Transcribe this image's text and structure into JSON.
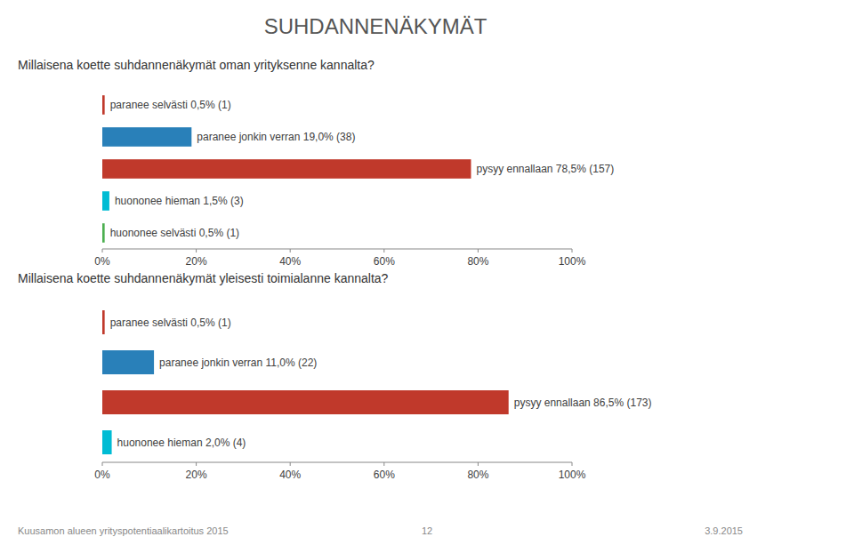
{
  "chart_data": [
    {
      "type": "bar",
      "orientation": "horizontal",
      "title": "SUHDANNENÄKYMÄT",
      "subtitle": "Millaisena koette suhdannenäkymät oman yrityksenne kannalta?",
      "categories": [
        "paranee selvästi 0,5% (1)",
        "paranee jonkin verran 19,0% (38)",
        "pysyy ennallaan 78,5% (157)",
        "huononee hieman 1,5% (3)",
        "huononee selvästi 0,5% (1)"
      ],
      "values": [
        0.5,
        19.0,
        78.5,
        1.5,
        0.5
      ],
      "colors": [
        "#c0392b",
        "#2980b9",
        "#c0392b",
        "#00bcd4",
        "#4caf50"
      ],
      "xlim": [
        0,
        100
      ],
      "xticks": [
        {
          "value": 0,
          "label": "0%"
        },
        {
          "value": 20,
          "label": "20%"
        },
        {
          "value": 40,
          "label": "40%"
        },
        {
          "value": 60,
          "label": "60%"
        },
        {
          "value": 80,
          "label": "80%"
        },
        {
          "value": 100,
          "label": "100%"
        }
      ],
      "grid": false
    },
    {
      "type": "bar",
      "orientation": "horizontal",
      "subtitle": "Millaisena koette suhdannenäkymät yleisesti toimialanne kannalta?",
      "categories": [
        "paranee selvästi 0,5% (1)",
        "paranee jonkin verran 11,0% (22)",
        "pysyy ennallaan 86,5% (173)",
        "huononee hieman 2,0% (4)"
      ],
      "values": [
        0.5,
        11.0,
        86.5,
        2.0
      ],
      "colors": [
        "#c0392b",
        "#2980b9",
        "#c0392b",
        "#00bcd4"
      ],
      "xlim": [
        0,
        100
      ],
      "xticks": [
        {
          "value": 0,
          "label": "0%"
        },
        {
          "value": 20,
          "label": "20%"
        },
        {
          "value": 40,
          "label": "40%"
        },
        {
          "value": 60,
          "label": "60%"
        },
        {
          "value": 80,
          "label": "80%"
        },
        {
          "value": 100,
          "label": "100%"
        }
      ],
      "grid": false,
      "annotations": [
        "Kuusamon alueen yrityspotentiaalikartoitus 2015",
        "12",
        "3.9.2015"
      ]
    }
  ]
}
